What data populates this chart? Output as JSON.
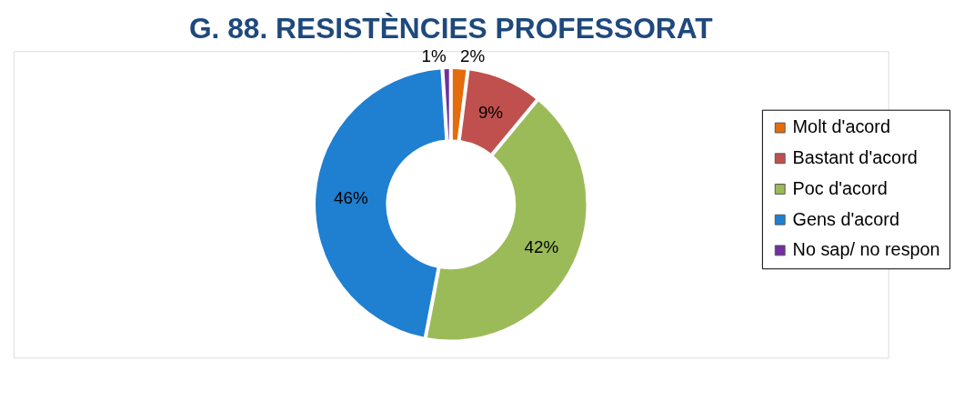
{
  "chart_data": {
    "type": "donut",
    "title": "G. 88. RESISTÈNCIES PROFESSORAT",
    "categories": [
      "Molt d'acord",
      "Bastant d'acord",
      "Poc d'acord",
      "Gens d'acord",
      "No sap/ no respon"
    ],
    "values": [
      2,
      9,
      42,
      46,
      1
    ],
    "colors": [
      "#e46c0a",
      "#c0504d",
      "#9bbb59",
      "#1f7fd0",
      "#7030a0"
    ],
    "value_labels": [
      "2%",
      "9%",
      "42%",
      "46%",
      "1%"
    ],
    "legend": "right"
  }
}
